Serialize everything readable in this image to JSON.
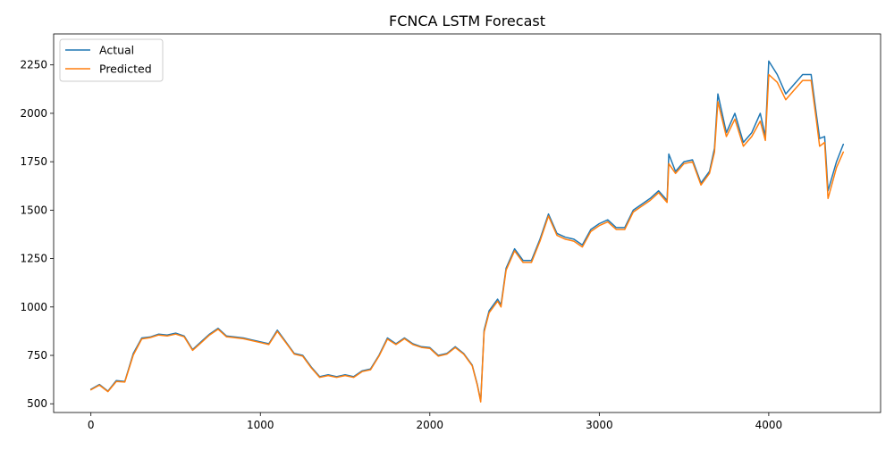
{
  "chart_data": {
    "type": "line",
    "title": "FCNCA LSTM Forecast",
    "xlabel": "",
    "ylabel": "",
    "xlim": [
      -220,
      4660
    ],
    "ylim": [
      455,
      2410
    ],
    "xticks": [
      0,
      1000,
      2000,
      3000,
      4000
    ],
    "yticks": [
      500,
      750,
      1000,
      1250,
      1500,
      1750,
      2000,
      2250
    ],
    "grid": false,
    "legend": {
      "placement": "top-left",
      "entries": [
        "Actual",
        "Predicted"
      ]
    },
    "series": [
      {
        "name": "Actual",
        "color": "#1f77b4",
        "x": [
          0,
          50,
          100,
          150,
          200,
          250,
          300,
          350,
          400,
          450,
          500,
          550,
          600,
          650,
          700,
          750,
          800,
          850,
          900,
          950,
          1000,
          1050,
          1100,
          1150,
          1200,
          1250,
          1300,
          1350,
          1400,
          1450,
          1500,
          1550,
          1600,
          1650,
          1700,
          1750,
          1800,
          1850,
          1900,
          1950,
          2000,
          2050,
          2100,
          2150,
          2200,
          2250,
          2280,
          2300,
          2320,
          2350,
          2400,
          2420,
          2450,
          2500,
          2550,
          2600,
          2650,
          2700,
          2750,
          2800,
          2850,
          2900,
          2950,
          3000,
          3050,
          3100,
          3150,
          3200,
          3250,
          3300,
          3350,
          3400,
          3410,
          3450,
          3500,
          3550,
          3600,
          3650,
          3680,
          3700,
          3750,
          3800,
          3850,
          3900,
          3950,
          3980,
          4000,
          4050,
          4100,
          4150,
          4200,
          4250,
          4280,
          4300,
          4330,
          4350,
          4400,
          4440
        ],
        "y": [
          575,
          600,
          565,
          620,
          615,
          760,
          840,
          845,
          860,
          855,
          865,
          850,
          780,
          820,
          860,
          890,
          850,
          845,
          840,
          830,
          820,
          810,
          880,
          820,
          760,
          750,
          690,
          640,
          650,
          640,
          650,
          640,
          670,
          680,
          750,
          840,
          810,
          840,
          810,
          795,
          790,
          750,
          760,
          795,
          760,
          700,
          600,
          515,
          880,
          980,
          1040,
          1010,
          1200,
          1300,
          1240,
          1240,
          1350,
          1480,
          1380,
          1360,
          1350,
          1320,
          1400,
          1430,
          1450,
          1410,
          1410,
          1500,
          1530,
          1560,
          1600,
          1550,
          1790,
          1700,
          1750,
          1760,
          1640,
          1700,
          1820,
          2100,
          1900,
          2000,
          1850,
          1900,
          2000,
          1880,
          2270,
          2200,
          2100,
          2150,
          2200,
          2200,
          2000,
          1870,
          1880,
          1600,
          1750,
          1840
        ]
      },
      {
        "name": "Predicted",
        "color": "#ff7f0e",
        "x": [
          0,
          50,
          100,
          150,
          200,
          250,
          300,
          350,
          400,
          450,
          500,
          550,
          600,
          650,
          700,
          750,
          800,
          850,
          900,
          950,
          1000,
          1050,
          1100,
          1150,
          1200,
          1250,
          1300,
          1350,
          1400,
          1450,
          1500,
          1550,
          1600,
          1650,
          1700,
          1750,
          1800,
          1850,
          1900,
          1950,
          2000,
          2050,
          2100,
          2150,
          2200,
          2250,
          2280,
          2300,
          2320,
          2350,
          2400,
          2420,
          2450,
          2500,
          2550,
          2600,
          2650,
          2700,
          2750,
          2800,
          2850,
          2900,
          2950,
          3000,
          3050,
          3100,
          3150,
          3200,
          3250,
          3300,
          3350,
          3400,
          3410,
          3450,
          3500,
          3550,
          3600,
          3650,
          3680,
          3700,
          3750,
          3800,
          3850,
          3900,
          3950,
          3980,
          4000,
          4050,
          4100,
          4150,
          4200,
          4250,
          4280,
          4300,
          4330,
          4350,
          4400,
          4440
        ],
        "y": [
          572,
          596,
          563,
          615,
          612,
          752,
          835,
          842,
          855,
          850,
          860,
          846,
          776,
          815,
          855,
          885,
          846,
          841,
          836,
          826,
          816,
          806,
          874,
          816,
          756,
          746,
          686,
          636,
          646,
          636,
          646,
          636,
          666,
          676,
          746,
          834,
          806,
          836,
          806,
          791,
          786,
          746,
          756,
          790,
          756,
          696,
          596,
          510,
          870,
          970,
          1030,
          1000,
          1190,
          1290,
          1230,
          1230,
          1340,
          1470,
          1370,
          1350,
          1340,
          1310,
          1390,
          1420,
          1440,
          1400,
          1400,
          1490,
          1520,
          1550,
          1590,
          1540,
          1740,
          1690,
          1740,
          1750,
          1630,
          1690,
          1800,
          2060,
          1880,
          1970,
          1830,
          1880,
          1960,
          1860,
          2200,
          2160,
          2070,
          2120,
          2170,
          2170,
          1970,
          1830,
          1850,
          1560,
          1720,
          1800
        ]
      }
    ]
  }
}
